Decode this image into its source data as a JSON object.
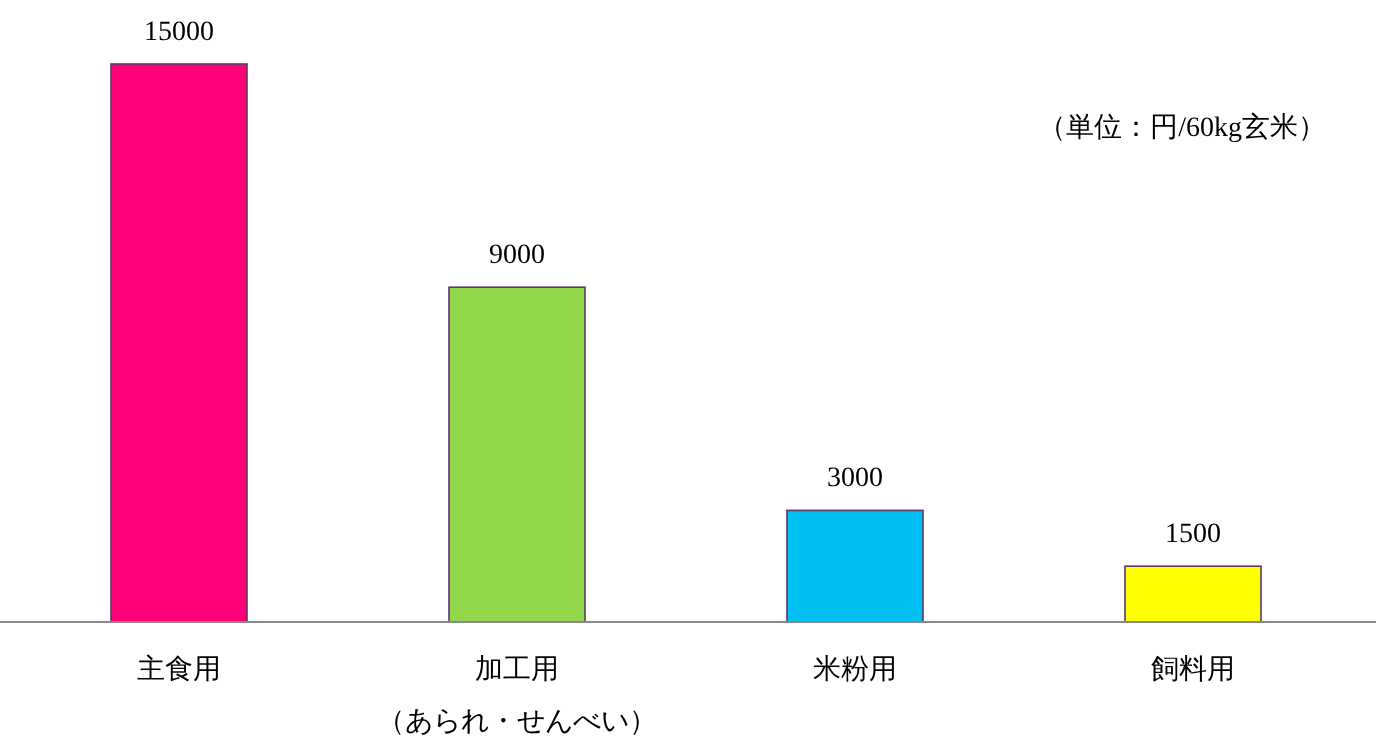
{
  "chart_data": {
    "type": "bar",
    "categories": [
      "主食用",
      "加工用（あられ・せんべい）",
      "米粉用",
      "飼料用"
    ],
    "values": [
      15000,
      9000,
      3000,
      1500
    ],
    "colors": [
      "#ff0078",
      "#92d64a",
      "#00bff3",
      "#ffff00"
    ],
    "data_labels": true,
    "annotations": [
      "（単位：円/60kg玄米）"
    ]
  }
}
